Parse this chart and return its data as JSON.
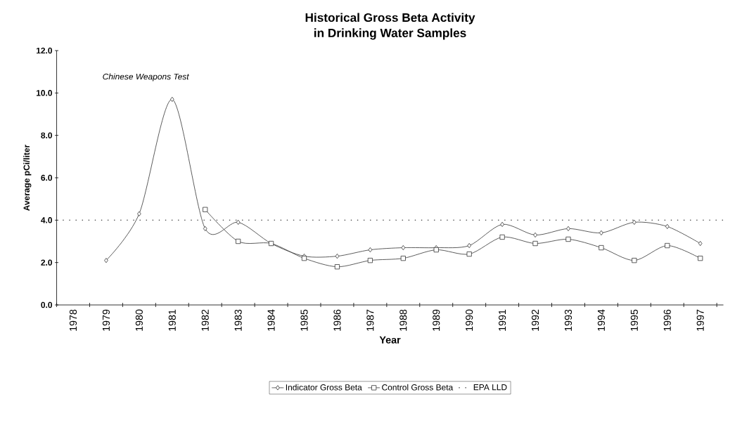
{
  "chart_data": {
    "type": "line",
    "title": "Historical Gross Beta Activity\nin Drinking Water Samples",
    "xlabel": "Year",
    "ylabel": "Average pCi/liter",
    "categories": [
      "1978",
      "1979",
      "1980",
      "1981",
      "1982",
      "1983",
      "1984",
      "1985",
      "1986",
      "1987",
      "1988",
      "1989",
      "1990",
      "1991",
      "1992",
      "1993",
      "1994",
      "1995",
      "1996",
      "1997"
    ],
    "series": [
      {
        "name": "Indicator Gross Beta",
        "color": "#333333",
        "marker": "diamond",
        "values": [
          null,
          2.1,
          4.3,
          9.7,
          3.6,
          3.9,
          2.9,
          2.3,
          2.3,
          2.6,
          2.7,
          2.7,
          2.8,
          3.8,
          3.3,
          3.6,
          3.4,
          3.9,
          3.7,
          2.9
        ]
      },
      {
        "name": "Control Gross Beta",
        "color": "#333333",
        "marker": "square",
        "values": [
          null,
          null,
          null,
          null,
          4.5,
          3.0,
          2.9,
          2.2,
          1.8,
          2.1,
          2.2,
          2.6,
          2.4,
          3.2,
          2.9,
          3.1,
          2.7,
          2.1,
          2.8,
          2.2
        ]
      }
    ],
    "ref_lines": [
      {
        "axis": "y",
        "value": 4.0,
        "label": "EPA LLD",
        "color": "#555555",
        "line_style": "dotted"
      }
    ],
    "annotations": [
      "Chinese Weapons Test"
    ],
    "ylim": [
      0,
      12
    ],
    "yticks": [
      {
        "value": 0,
        "label": "0.0"
      },
      {
        "value": 2,
        "label": "2.0"
      },
      {
        "value": 4,
        "label": "4.0"
      },
      {
        "value": 6,
        "label": "6.0"
      },
      {
        "value": 8,
        "label": "8.0"
      },
      {
        "value": 10,
        "label": "10.0"
      },
      {
        "value": 12,
        "label": "12.0"
      }
    ],
    "grid": false,
    "legend": "bottom",
    "line_style": "solid"
  }
}
